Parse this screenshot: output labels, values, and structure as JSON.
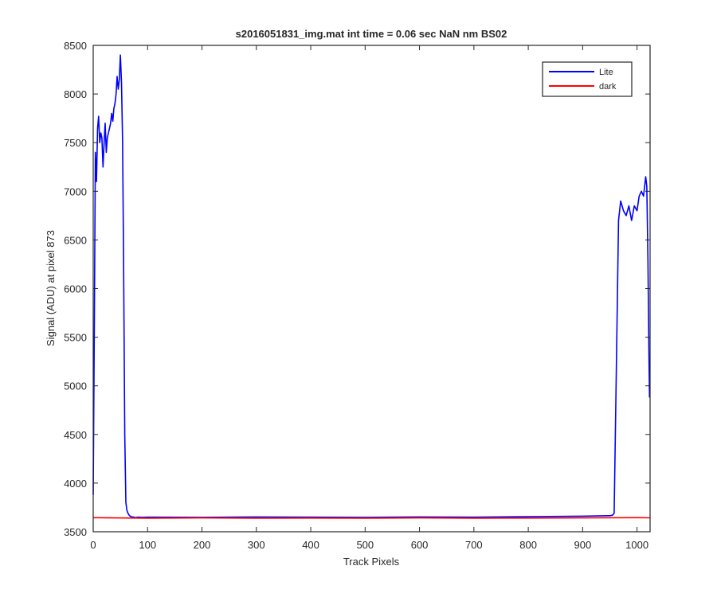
{
  "chart_data": {
    "type": "line",
    "title": "s2016051831_img.mat int time = 0.06 sec  NaN nm BS02",
    "xlabel": "Track Pixels",
    "ylabel": "Signal (ADU) at pixel 873",
    "xlim": [
      0,
      1024
    ],
    "ylim": [
      3500,
      8500
    ],
    "xticks": [
      0,
      100,
      200,
      300,
      400,
      500,
      600,
      700,
      800,
      900,
      1000
    ],
    "yticks": [
      3500,
      4000,
      4500,
      5000,
      5500,
      6000,
      6500,
      7000,
      7500,
      8000,
      8500
    ],
    "legend_position": "top-right",
    "grid": false,
    "series": [
      {
        "name": "Lite",
        "color": "#0000ff",
        "x": [
          0,
          2,
          4,
          6,
          8,
          10,
          12,
          14,
          16,
          18,
          20,
          22,
          24,
          26,
          28,
          30,
          32,
          34,
          36,
          38,
          40,
          42,
          44,
          46,
          48,
          50,
          52,
          54,
          56,
          58,
          60,
          62,
          64,
          66,
          68,
          70,
          72,
          75,
          78,
          82,
          90,
          100,
          200,
          300,
          400,
          500,
          600,
          700,
          800,
          900,
          950,
          955,
          958,
          962,
          966,
          970,
          975,
          980,
          985,
          990,
          995,
          1000,
          1004,
          1008,
          1012,
          1016,
          1018,
          1020,
          1022,
          1023
        ],
        "y": [
          3880,
          5600,
          7400,
          7100,
          7650,
          7770,
          7500,
          7600,
          7550,
          7250,
          7500,
          7700,
          7400,
          7550,
          7600,
          7650,
          7700,
          7800,
          7720,
          7850,
          7900,
          8000,
          8180,
          8050,
          8150,
          8400,
          8120,
          7500,
          6200,
          4500,
          3800,
          3720,
          3690,
          3670,
          3660,
          3655,
          3652,
          3650,
          3645,
          3650,
          3648,
          3650,
          3648,
          3652,
          3650,
          3648,
          3652,
          3650,
          3655,
          3660,
          3665,
          3670,
          3690,
          5200,
          6700,
          6900,
          6800,
          6750,
          6850,
          6700,
          6850,
          6800,
          6950,
          7000,
          6950,
          7150,
          7050,
          6300,
          5300,
          4880
        ]
      },
      {
        "name": "dark",
        "color": "#ff0000",
        "x": [
          0,
          100,
          200,
          300,
          400,
          500,
          600,
          700,
          800,
          900,
          1000,
          1024
        ],
        "y": [
          3645,
          3640,
          3642,
          3640,
          3641,
          3640,
          3642,
          3640,
          3641,
          3642,
          3645,
          3643
        ]
      }
    ]
  }
}
